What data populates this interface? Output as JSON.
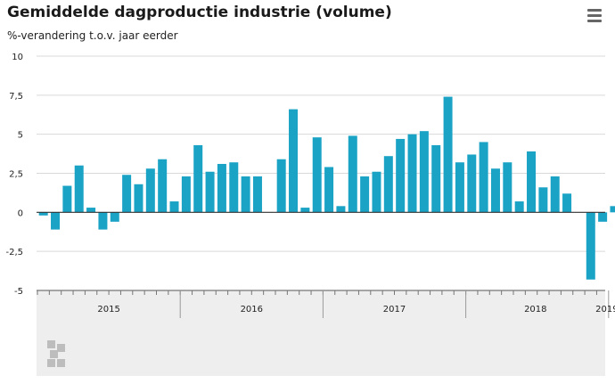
{
  "header": {
    "title": "Gemiddelde dagproductie industrie (volume)",
    "menu_icon": "hamburger-menu-icon"
  },
  "chart_data": {
    "type": "bar",
    "title": "Gemiddelde dagproductie industrie (volume)",
    "ylabel": "%-verandering t.o.v. jaar eerder",
    "xlabel": "",
    "ylim": [
      -5,
      10
    ],
    "yticks": [
      {
        "value": 10,
        "label": "10"
      },
      {
        "value": 7.5,
        "label": "7,5"
      },
      {
        "value": 5,
        "label": "5"
      },
      {
        "value": 2.5,
        "label": "2,5"
      },
      {
        "value": 0,
        "label": "0"
      },
      {
        "value": -2.5,
        "label": "-2,5"
      },
      {
        "value": -5,
        "label": "-5"
      }
    ],
    "grid": true,
    "bar_color": "#1ba3c6",
    "year_labels": [
      {
        "label": "2015",
        "start": 0,
        "end": 12
      },
      {
        "label": "2016",
        "start": 12,
        "end": 24
      },
      {
        "label": "2017",
        "start": 24,
        "end": 36
      },
      {
        "label": "2018",
        "start": 36,
        "end": 48
      },
      {
        "label": "2019",
        "start": 48,
        "end": 50
      }
    ],
    "values": [
      -0.2,
      -1.1,
      1.7,
      3.0,
      0.3,
      -1.1,
      -0.6,
      2.4,
      1.8,
      2.8,
      3.4,
      0.7,
      2.3,
      4.3,
      2.6,
      3.1,
      3.2,
      2.3,
      2.3,
      null,
      3.4,
      6.6,
      0.3,
      4.8,
      2.9,
      0.4,
      4.9,
      2.3,
      2.6,
      3.6,
      4.7,
      5.0,
      5.2,
      4.3,
      7.4,
      3.2,
      3.7,
      4.5,
      2.8,
      3.2,
      0.7,
      3.9,
      1.6,
      2.3,
      1.2,
      null,
      -4.3,
      -0.6,
      0.4
    ]
  },
  "footer": {
    "logo_icon": "cbs-logo-icon"
  }
}
